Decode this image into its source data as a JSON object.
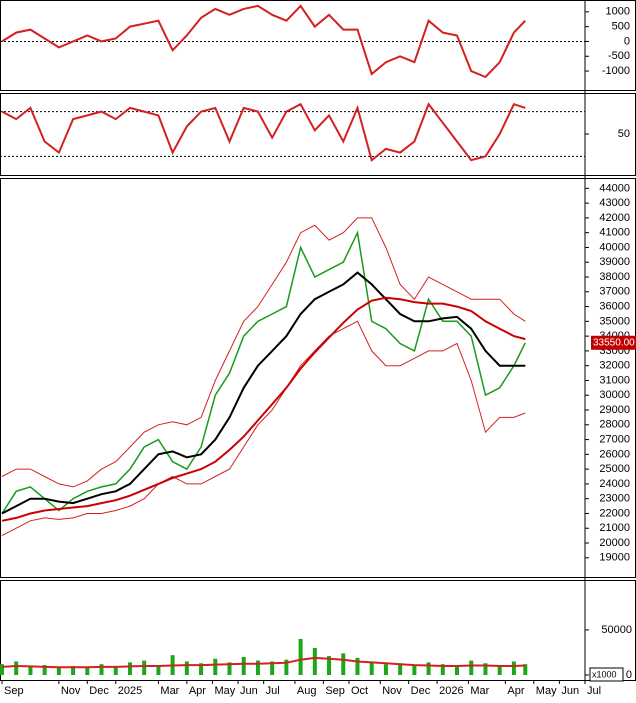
{
  "chart_data": [
    {
      "type": "line",
      "ylim": [
        -1640,
        1400
      ],
      "yticks": [
        1000,
        500,
        0,
        -500,
        -1000
      ],
      "refline": 0,
      "series": [
        {
          "color": "#d42020",
          "values": [
            0,
            300,
            400,
            100,
            -200,
            0,
            200,
            0,
            100,
            500,
            600,
            700,
            -300,
            200,
            800,
            1100,
            900,
            1100,
            1200,
            900,
            700,
            1200,
            500,
            900,
            400,
            400,
            -1100,
            -700,
            -500,
            -700,
            700,
            300,
            200,
            -1000,
            -1200,
            -700,
            300,
            700
          ]
        }
      ]
    },
    {
      "type": "line",
      "ylim": [
        -5,
        105
      ],
      "yticks": [
        50
      ],
      "reflines": [
        80,
        20
      ],
      "series": [
        {
          "color": "#d42020",
          "values": [
            80,
            70,
            85,
            40,
            25,
            70,
            75,
            80,
            70,
            85,
            80,
            75,
            25,
            60,
            80,
            85,
            40,
            85,
            80,
            45,
            80,
            90,
            55,
            75,
            40,
            85,
            15,
            30,
            25,
            40,
            90,
            65,
            40,
            15,
            20,
            50,
            90,
            85
          ]
        }
      ]
    },
    {
      "type": "line",
      "ylim": [
        17700,
        44700
      ],
      "yticks": [
        44000,
        43000,
        42000,
        41000,
        40000,
        39000,
        38000,
        37000,
        36000,
        35000,
        34000,
        33000,
        32000,
        31000,
        30000,
        29000,
        28000,
        27000,
        26000,
        25000,
        24000,
        23000,
        22000,
        21000,
        20000,
        19000
      ],
      "last_label": "33550.00",
      "series": [
        {
          "color": "#1a9a1a",
          "values": [
            22000,
            23500,
            23800,
            23000,
            22200,
            23000,
            23500,
            23800,
            24000,
            25000,
            26500,
            27000,
            25500,
            25000,
            26500,
            30000,
            31500,
            34000,
            35000,
            35500,
            36000,
            40000,
            38000,
            38500,
            39000,
            41000,
            35000,
            34500,
            33500,
            33000,
            36500,
            35000,
            35000,
            34000,
            30000,
            30500,
            32000,
            33550
          ]
        },
        {
          "color": "#d42020",
          "values": [
            24500,
            25000,
            25000,
            24500,
            24000,
            23800,
            24200,
            25000,
            25500,
            26500,
            27500,
            28000,
            28200,
            28000,
            28500,
            31000,
            33000,
            35000,
            36000,
            37500,
            39000,
            41000,
            41500,
            40500,
            41000,
            42000,
            42000,
            40000,
            37500,
            36500,
            38000,
            37500,
            37000,
            36500,
            36500,
            36500,
            35500,
            35000
          ]
        },
        {
          "color": "#d42020",
          "values": [
            20500,
            21000,
            21500,
            21700,
            21600,
            21700,
            22000,
            22000,
            22200,
            22500,
            23000,
            24000,
            24500,
            24000,
            24000,
            24500,
            25000,
            26500,
            28000,
            29000,
            30500,
            32000,
            33000,
            34000,
            34500,
            35000,
            33000,
            32000,
            32000,
            32500,
            33000,
            33000,
            33500,
            31000,
            27500,
            28500,
            28500,
            28800
          ]
        },
        {
          "color": "#000000",
          "values": [
            22000,
            22500,
            23000,
            23000,
            22800,
            22700,
            23000,
            23300,
            23500,
            24000,
            25000,
            26000,
            26200,
            25800,
            26000,
            27000,
            28500,
            30500,
            32000,
            33000,
            34000,
            35500,
            36500,
            37000,
            37500,
            38300,
            37500,
            36500,
            35500,
            35000,
            35000,
            35200,
            35300,
            34500,
            33000,
            32000,
            32000,
            32000
          ]
        },
        {
          "color": "#cc0000",
          "values": [
            21500,
            21700,
            22000,
            22200,
            22300,
            22400,
            22500,
            22700,
            22900,
            23200,
            23600,
            24000,
            24400,
            24700,
            25000,
            25500,
            26300,
            27200,
            28300,
            29400,
            30500,
            31800,
            32900,
            33900,
            34900,
            35800,
            36400,
            36600,
            36500,
            36300,
            36200,
            36200,
            36000,
            35700,
            35000,
            34500,
            34000,
            33800
          ]
        }
      ]
    },
    {
      "type": "bar",
      "ylim": [
        0,
        102000
      ],
      "yticks": [
        0,
        50000
      ],
      "unit_label": "x1000",
      "bar_color": "#18a818",
      "values": [
        12000,
        15000,
        9000,
        11000,
        8000,
        10000,
        9000,
        12000,
        10000,
        14000,
        16000,
        11000,
        22000,
        15000,
        13000,
        18000,
        14000,
        20000,
        16000,
        15000,
        17000,
        40000,
        30000,
        21000,
        24000,
        19000,
        15000,
        12000,
        13000,
        11000,
        14000,
        12000,
        10000,
        16000,
        13000,
        11000,
        15000,
        12000
      ],
      "ma": {
        "color": "#d42020",
        "values": [
          9000,
          10000,
          9500,
          9000,
          8500,
          8500,
          8500,
          9000,
          9000,
          9500,
          10000,
          10000,
          10500,
          11000,
          11000,
          11500,
          12000,
          12500,
          12500,
          13000,
          13500,
          17000,
          19000,
          18000,
          17000,
          15000,
          14000,
          13000,
          12000,
          11000,
          10500,
          10000,
          10000,
          10500,
          10500,
          10000,
          10000,
          10500
        ]
      },
      "x": [
        0,
        0.5,
        1,
        1.5,
        2,
        2.5,
        3,
        3.5,
        4,
        4.5,
        5,
        5.5,
        6,
        6.5,
        7,
        7.5,
        8,
        8.5,
        9,
        9.5,
        10,
        10.5,
        11,
        11.5,
        12,
        12.5,
        13,
        13.5,
        14,
        14.5,
        15,
        15.5,
        16,
        16.5,
        17,
        17.5,
        18,
        18.4
      ],
      "xlim": [
        -0.07,
        20.5
      ],
      "xticks": [
        {
          "value": 0,
          "label": "Sep"
        },
        {
          "value": 2,
          "label": "Nov"
        },
        {
          "value": 3,
          "label": "Dec"
        },
        {
          "value": 4,
          "label": "2025"
        },
        {
          "value": 5.5,
          "label": "Mar"
        },
        {
          "value": 6.5,
          "label": "Apr"
        },
        {
          "value": 7.4,
          "label": "May"
        },
        {
          "value": 8.3,
          "label": "Jun"
        },
        {
          "value": 9.2,
          "label": "Jul"
        },
        {
          "value": 10.3,
          "label": "Aug"
        },
        {
          "value": 11.3,
          "label": "Sep"
        },
        {
          "value": 12.2,
          "label": "Oct"
        },
        {
          "value": 13.3,
          "label": "Nov"
        },
        {
          "value": 14.3,
          "label": "Dec"
        },
        {
          "value": 15.3,
          "label": "2026"
        },
        {
          "value": 16.4,
          "label": "Mar"
        },
        {
          "value": 17.7,
          "label": "Apr"
        },
        {
          "value": 18.7,
          "label": "May"
        },
        {
          "value": 19.6,
          "label": "Jun"
        },
        {
          "value": 20.5,
          "label": "Jul"
        }
      ]
    }
  ]
}
